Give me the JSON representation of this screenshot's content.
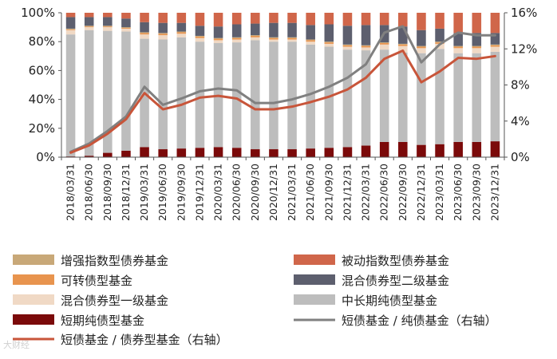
{
  "chart_data": {
    "type": "bar",
    "stacked": true,
    "categories": [
      "2018/03/31",
      "2018/06/30",
      "2018/09/30",
      "2018/12/31",
      "2019/03/31",
      "2019/06/30",
      "2019/09/30",
      "2019/12/31",
      "2020/03/31",
      "2020/06/30",
      "2020/09/30",
      "2020/12/31",
      "2021/03/31",
      "2021/06/30",
      "2021/09/30",
      "2021/12/31",
      "2022/03/31",
      "2022/06/30",
      "2022/09/30",
      "2022/12/31",
      "2023/03/31",
      "2023/06/30",
      "2023/09/30",
      "2023/12/31"
    ],
    "y_left": {
      "ylim": [
        0,
        100
      ],
      "ticks": [
        "0%",
        "20%",
        "40%",
        "60%",
        "80%",
        "100%"
      ]
    },
    "y_right": {
      "ylim": [
        0,
        16
      ],
      "ticks": [
        "0%",
        "4%",
        "8%",
        "12%",
        "16%"
      ]
    },
    "series": [
      {
        "name": "短期纯债型基金",
        "color": "#7b0a0a",
        "values": [
          0.5,
          1,
          3,
          4.5,
          7,
          5.5,
          6,
          6.5,
          7,
          6.5,
          5.5,
          5.5,
          5.5,
          6,
          6.5,
          7,
          8,
          10.5,
          10.5,
          8.5,
          9,
          10.5,
          10.5,
          11
        ]
      },
      {
        "name": "中长期纯债型基金",
        "color": "#bdbdbd",
        "values": [
          84.5,
          87,
          84.5,
          82.5,
          75,
          76,
          77,
          73.5,
          72,
          73,
          75.5,
          74.5,
          74.5,
          72,
          70,
          67.5,
          66,
          64,
          62,
          63.5,
          66,
          61.5,
          61.5,
          62
        ]
      },
      {
        "name": "混合债券型一级基金",
        "color": "#f0d9c5",
        "values": [
          3,
          2,
          2.5,
          2,
          3,
          3,
          2.5,
          2.5,
          2,
          2,
          2,
          1.5,
          1.5,
          2,
          2,
          2,
          2,
          3.5,
          4.5,
          3.5,
          3.5,
          3.5,
          3.5,
          3.5
        ]
      },
      {
        "name": "可转债型基金",
        "color": "#e8944e",
        "values": [
          0.5,
          0.5,
          0.5,
          0.5,
          1,
          1,
          1,
          1,
          1,
          1,
          1,
          1,
          1,
          1,
          1,
          1,
          1,
          1,
          1,
          1,
          1,
          1,
          1,
          1
        ]
      },
      {
        "name": "增强指数型债券基金",
        "color": "#c8a878",
        "values": [
          0.5,
          0.5,
          0.5,
          0.5,
          0.5,
          0.5,
          0.5,
          0.5,
          0.5,
          0.5,
          0.5,
          0.5,
          0.5,
          0.5,
          0.5,
          0.5,
          0.5,
          0.5,
          0.5,
          0.5,
          0.5,
          0.5,
          0.5,
          0.5
        ]
      },
      {
        "name": "混合债券型二级基金",
        "color": "#5d5f6e",
        "values": [
          8,
          6,
          6,
          6,
          7,
          7,
          6,
          7,
          8,
          9,
          8,
          10,
          10,
          10,
          12,
          13,
          14,
          12,
          12,
          11,
          9,
          9,
          9,
          8
        ]
      },
      {
        "name": "被动指数型债券基金",
        "color": "#d0664a",
        "values": [
          3,
          3,
          3,
          4,
          6.5,
          7,
          7,
          9,
          9.5,
          8,
          7.5,
          7,
          7,
          8.5,
          8,
          9,
          8.5,
          8.5,
          9.5,
          12,
          11,
          14,
          14,
          14
        ]
      }
    ],
    "lines": [
      {
        "name": "短债基金 / 纯债基金（右轴）",
        "color": "#808080",
        "axis": "right",
        "values": [
          0.6,
          1.5,
          2.9,
          4.5,
          7.8,
          5.8,
          6.5,
          7.3,
          7.6,
          7.4,
          6,
          6,
          6.4,
          7,
          7.8,
          8.8,
          10.3,
          13.8,
          14.5,
          10.5,
          12.5,
          13.8,
          13.5,
          13.5
        ]
      },
      {
        "name": "短债基金 / 债券型基金（右轴）",
        "color": "#c8553a",
        "axis": "right",
        "values": [
          0.5,
          1.3,
          2.6,
          4.2,
          7.1,
          5.3,
          5.8,
          6.6,
          6.8,
          6.5,
          5.3,
          5.3,
          5.6,
          6.1,
          6.7,
          7.5,
          8.8,
          10.9,
          11.8,
          8.3,
          9.5,
          11,
          10.9,
          11.2
        ]
      }
    ],
    "legend_position": "bottom",
    "grid": false
  },
  "legend": [
    {
      "label": "增强指数型债券基金",
      "kind": "rect",
      "color": "#c8a878"
    },
    {
      "label": "被动指数型债券基金",
      "kind": "rect",
      "color": "#d0664a"
    },
    {
      "label": "可转债型基金",
      "kind": "rect",
      "color": "#e8944e"
    },
    {
      "label": "混合债券型二级基金",
      "kind": "rect",
      "color": "#5d5f6e"
    },
    {
      "label": "混合债券型一级基金",
      "kind": "rect",
      "color": "#f0d9c5"
    },
    {
      "label": "中长期纯债型基金",
      "kind": "rect",
      "color": "#bdbdbd"
    },
    {
      "label": "短期纯债型基金",
      "kind": "rect",
      "color": "#7b0a0a"
    },
    {
      "label": "短债基金 / 纯债基金（右轴）",
      "kind": "line",
      "color": "#808080"
    },
    {
      "label": "短债基金 / 债券型基金（右轴）",
      "kind": "line",
      "color": "#c8553a"
    }
  ],
  "watermark": "大财经"
}
